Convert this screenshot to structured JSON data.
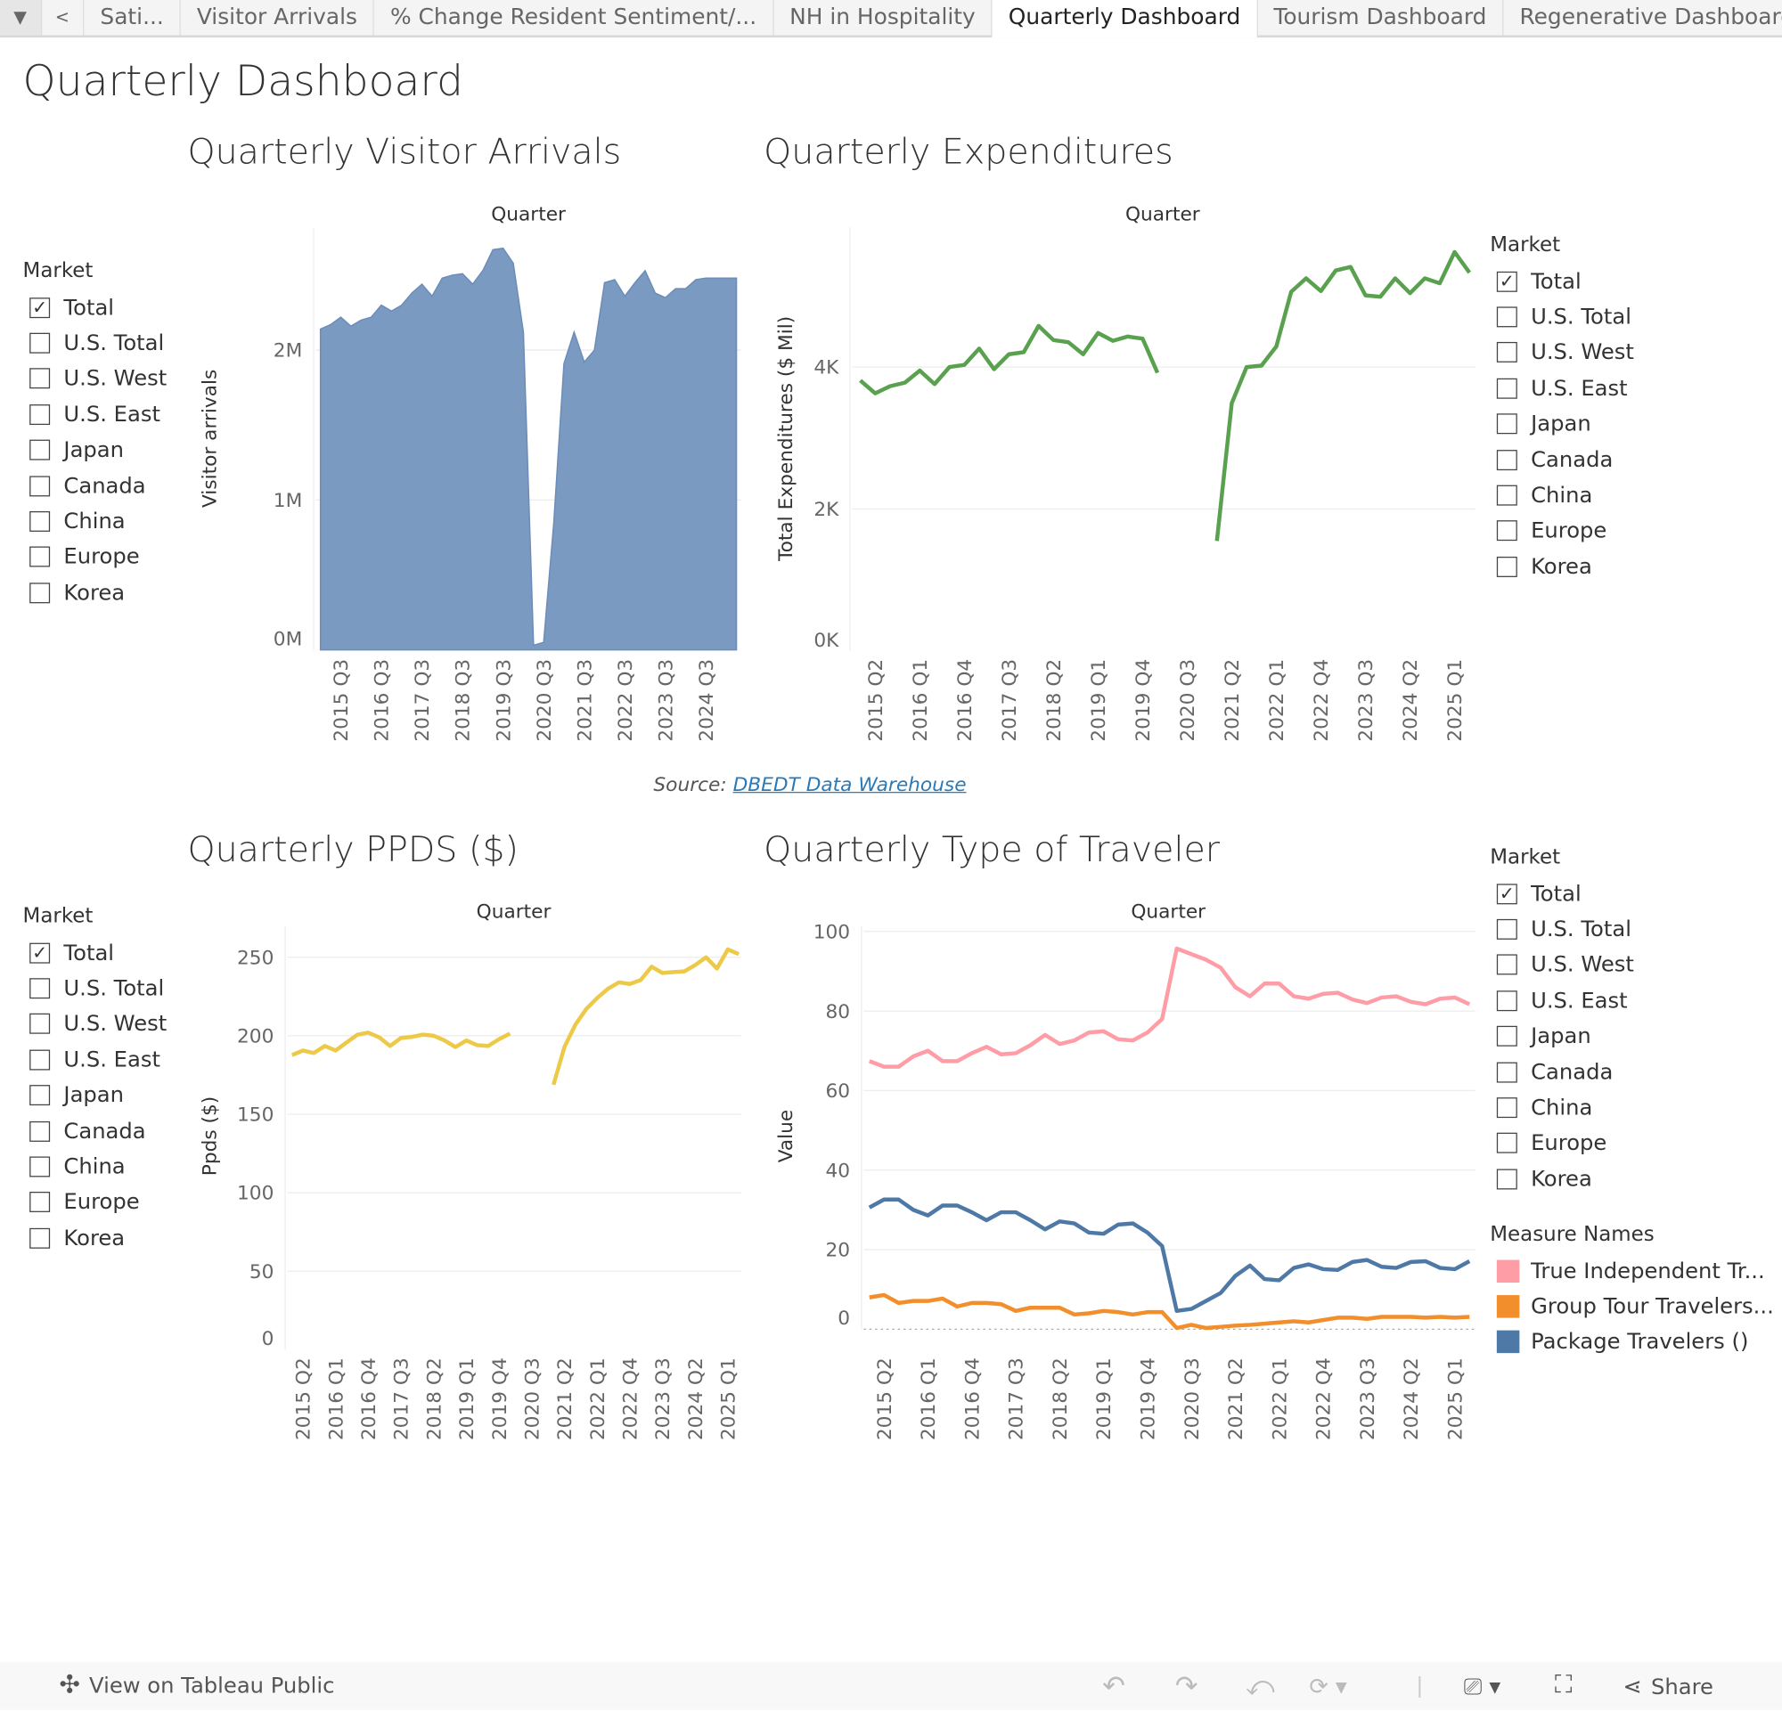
{
  "tabs": [
    "Sati...",
    "Visitor Arrivals",
    "% Change Resident Sentiment/...",
    "NH in Hospitality",
    "Quarterly Dashboard",
    "Tourism Dashboard",
    "Regenerative Dashboard"
  ],
  "active_tab": "Quarterly Dashboard",
  "page_title": "Quarterly Dashboard",
  "source": {
    "label": "Source:",
    "link": "DBEDT Data Warehouse"
  },
  "market_legend": {
    "title": "Market",
    "items": [
      "Total",
      "U.S. Total",
      "U.S. West",
      "U.S. East",
      "Japan",
      "Canada",
      "China",
      "Europe",
      "Korea"
    ],
    "checked": "Total"
  },
  "measure_legend": {
    "title": "Measure Names",
    "items": [
      {
        "label": "True Independent Tr...",
        "color": "#ff9da7"
      },
      {
        "label": "Group Tour Travelers...",
        "color": "#f28e2b"
      },
      {
        "label": "Package Travelers ()",
        "color": "#4e79a7"
      }
    ]
  },
  "bottom": {
    "view_label": "View on Tableau Public",
    "share_label": "Share"
  },
  "quarters": [
    "2015 Q1",
    "2015 Q2",
    "2015 Q3",
    "2015 Q4",
    "2016 Q1",
    "2016 Q2",
    "2016 Q3",
    "2016 Q4",
    "2017 Q1",
    "2017 Q2",
    "2017 Q3",
    "2017 Q4",
    "2018 Q1",
    "2018 Q2",
    "2018 Q3",
    "2018 Q4",
    "2019 Q1",
    "2019 Q2",
    "2019 Q3",
    "2019 Q4",
    "2020 Q1",
    "2020 Q2",
    "2020 Q3",
    "2020 Q4",
    "2021 Q1",
    "2021 Q2",
    "2021 Q3",
    "2021 Q4",
    "2022 Q1",
    "2022 Q2",
    "2022 Q3",
    "2022 Q4",
    "2023 Q1",
    "2023 Q2",
    "2023 Q3",
    "2023 Q4",
    "2024 Q1",
    "2024 Q2",
    "2024 Q3",
    "2024 Q4",
    "2025 Q1",
    "2025 Q2"
  ],
  "chart_data": [
    {
      "type": "area",
      "title": "Quarterly Visitor Arrivals",
      "header": "Quarter",
      "ylabel": "Visitor arrivals",
      "ylim": [
        0,
        2.82
      ],
      "yticks": [
        0,
        1,
        2
      ],
      "ytick_labels": [
        "0M",
        "1M",
        "2M"
      ],
      "xticks": [
        "2015 Q3",
        "2016 Q3",
        "2017 Q3",
        "2018 Q3",
        "2019 Q3",
        "2020 Q3",
        "2021 Q3",
        "2022 Q3",
        "2023 Q3",
        "2024 Q3"
      ],
      "color": "#7b9ac2",
      "series": [
        {
          "name": "Total",
          "unit": "millions",
          "values": [
            2.14,
            2.17,
            2.22,
            2.16,
            2.2,
            2.22,
            2.3,
            2.26,
            2.3,
            2.38,
            2.44,
            2.36,
            2.48,
            2.5,
            2.51,
            2.44,
            2.53,
            2.67,
            2.68,
            2.58,
            2.12,
            0.03,
            0.05,
            0.85,
            1.91,
            2.12,
            1.92,
            2.0,
            2.45,
            2.47,
            2.36,
            2.45,
            2.53,
            2.38,
            2.35,
            2.41,
            2.41,
            2.47,
            2.48,
            2.48,
            2.48,
            2.48
          ]
        }
      ]
    },
    {
      "type": "line",
      "title": "Quarterly Expenditures",
      "header": "Quarter",
      "ylabel": "Total Expenditures ($ Mil)",
      "ylim": [
        0,
        5.97
      ],
      "yticks": [
        0,
        2,
        4
      ],
      "ytick_labels": [
        "0K",
        "2K",
        "4K"
      ],
      "xticks": [
        "2015 Q2",
        "2016 Q1",
        "2016 Q4",
        "2017 Q3",
        "2018 Q2",
        "2019 Q1",
        "2019 Q4",
        "2020 Q3",
        "2021 Q2",
        "2022 Q1",
        "2022 Q4",
        "2023 Q3",
        "2024 Q2",
        "2025 Q1"
      ],
      "color": "#59a14f",
      "series": [
        {
          "name": "Total",
          "unit": "thousands $ Mil",
          "values": [
            3.81,
            3.63,
            3.73,
            3.78,
            3.95,
            3.76,
            4.0,
            4.03,
            4.26,
            3.97,
            4.18,
            4.21,
            4.58,
            4.38,
            4.35,
            4.18,
            4.48,
            4.37,
            4.43,
            4.4,
            3.92,
            null,
            null,
            null,
            1.55,
            3.49,
            4.0,
            4.02,
            4.29,
            5.06,
            5.25,
            5.07,
            5.36,
            5.41,
            5.01,
            4.99,
            5.25,
            5.04,
            5.25,
            5.18,
            5.62,
            5.33
          ]
        }
      ]
    },
    {
      "type": "line",
      "title": "Quarterly PPDS ($)",
      "header": "Quarter",
      "ylabel": "Ppds ($)",
      "ylim": [
        0,
        270
      ],
      "yticks": [
        0,
        50,
        100,
        150,
        200,
        250
      ],
      "ytick_labels": [
        "0",
        "50",
        "100",
        "150",
        "200",
        "250"
      ],
      "xticks": [
        "2015 Q2",
        "2016 Q1",
        "2016 Q4",
        "2017 Q3",
        "2018 Q2",
        "2019 Q1",
        "2019 Q4",
        "2020 Q3",
        "2021 Q2",
        "2022 Q1",
        "2022 Q4",
        "2023 Q3",
        "2024 Q2",
        "2025 Q1"
      ],
      "color": "#edc948",
      "series": [
        {
          "name": "Total",
          "values": [
            187.7,
            190.6,
            189,
            193.5,
            190.6,
            195.7,
            200.7,
            202,
            199,
            193.5,
            198.6,
            199.3,
            200.7,
            200,
            197,
            192.8,
            197,
            194,
            193.5,
            197.8,
            201.4,
            null,
            null,
            null,
            168.8,
            192.8,
            207,
            217,
            224,
            230,
            234,
            233,
            235.5,
            244,
            240,
            240.6,
            241,
            245,
            250,
            242.8,
            255,
            252
          ]
        }
      ]
    },
    {
      "type": "line",
      "title": "Quarterly Type of Traveler",
      "header": "Quarter",
      "ylabel": "Value",
      "ylim": [
        0,
        101.4
      ],
      "yticks": [
        0,
        20,
        40,
        60,
        80,
        100
      ],
      "ytick_labels": [
        "0",
        "20",
        "40",
        "60",
        "80",
        "100"
      ],
      "xticks": [
        "2015 Q2",
        "2016 Q1",
        "2016 Q4",
        "2017 Q3",
        "2018 Q2",
        "2019 Q1",
        "2019 Q4",
        "2020 Q3",
        "2021 Q2",
        "2022 Q1",
        "2022 Q4",
        "2023 Q3",
        "2024 Q2",
        "2025 Q1"
      ],
      "series": [
        {
          "name": "True Independent Travelers",
          "color": "#ff9da7",
          "values": [
            67.4,
            66,
            66,
            68.6,
            70,
            67.4,
            67.4,
            69.4,
            71,
            69.1,
            69.4,
            71.4,
            74,
            71.7,
            72.6,
            74.6,
            74.9,
            72.9,
            72.6,
            74.6,
            78,
            95.7,
            94.3,
            92.9,
            90.9,
            86,
            83.7,
            86.9,
            86.9,
            83.7,
            83.1,
            84.3,
            84.6,
            82.9,
            82,
            83.4,
            83.7,
            82.3,
            81.7,
            83.1,
            83.4,
            81.7
          ]
        },
        {
          "name": "Group Tour Travelers",
          "color": "#f28e2b",
          "values": [
            8,
            8.6,
            6.6,
            7.1,
            7.1,
            7.7,
            5.7,
            6.6,
            6.6,
            6.3,
            4.6,
            5.4,
            5.4,
            5.4,
            3.7,
            4,
            4.6,
            4.3,
            3.7,
            4.3,
            4.3,
            0.3,
            1.1,
            0.3,
            0.6,
            0.9,
            1.1,
            1.4,
            1.7,
            2,
            1.7,
            2.3,
            2.9,
            2.9,
            2.6,
            3.1,
            3.1,
            3.1,
            2.9,
            3.1,
            2.9,
            3.1
          ]
        },
        {
          "name": "Package Travelers",
          "color": "#4e79a7",
          "values": [
            30.6,
            32.6,
            32.6,
            30,
            28.6,
            31.1,
            31.1,
            29.4,
            27.4,
            29.4,
            29.4,
            27.4,
            25.1,
            27.1,
            26.6,
            24.3,
            24,
            26.3,
            26.6,
            24.3,
            20.9,
            4.6,
            5.1,
            7.1,
            9.1,
            13.4,
            16,
            12.6,
            12.3,
            15.4,
            16.3,
            15.1,
            14.9,
            16.9,
            17.4,
            15.7,
            15.4,
            16.9,
            17.1,
            15.4,
            15.1,
            17.1
          ]
        }
      ]
    }
  ]
}
